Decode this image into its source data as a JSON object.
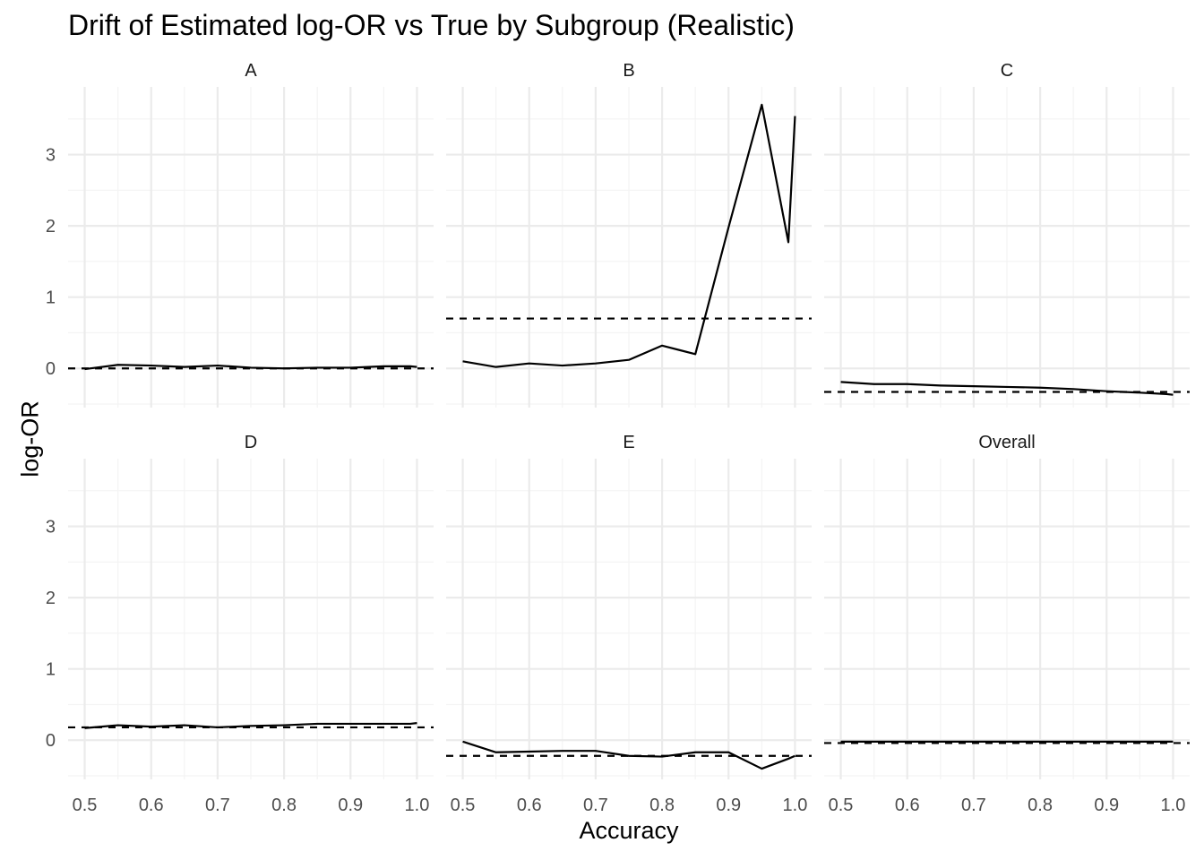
{
  "chart_data": {
    "type": "line",
    "title": "Drift of Estimated log-OR vs True by Subgroup (Realistic)",
    "xlabel": "Accuracy",
    "ylabel": "log-OR",
    "xlim": [
      0.475,
      1.025
    ],
    "ylim": [
      -0.55,
      3.95
    ],
    "x_ticks": [
      0.5,
      0.6,
      0.7,
      0.8,
      0.9,
      1.0
    ],
    "x_tick_labels": [
      "0.5",
      "0.6",
      "0.7",
      "0.8",
      "0.9",
      "1.0"
    ],
    "y_ticks": [
      0,
      1,
      2,
      3
    ],
    "y_tick_labels": [
      "0",
      "1",
      "2",
      "3"
    ],
    "grid": true,
    "facets": [
      {
        "label": "A",
        "estimated": {
          "x": [
            0.5,
            0.55,
            0.6,
            0.65,
            0.7,
            0.75,
            0.8,
            0.85,
            0.9,
            0.95,
            0.99,
            1.0
          ],
          "y": [
            -0.01,
            0.05,
            0.04,
            0.02,
            0.04,
            0.01,
            0.0,
            0.01,
            0.01,
            0.03,
            0.03,
            0.02
          ]
        },
        "true_value": 0.0
      },
      {
        "label": "B",
        "estimated": {
          "x": [
            0.5,
            0.55,
            0.6,
            0.65,
            0.7,
            0.75,
            0.8,
            0.85,
            0.9,
            0.95,
            0.99,
            1.0
          ],
          "y": [
            0.1,
            0.02,
            0.07,
            0.04,
            0.07,
            0.12,
            0.32,
            0.2,
            1.98,
            3.7,
            1.77,
            3.54
          ]
        },
        "true_value": 0.7
      },
      {
        "label": "C",
        "estimated": {
          "x": [
            0.5,
            0.55,
            0.6,
            0.65,
            0.7,
            0.75,
            0.8,
            0.85,
            0.9,
            0.95,
            0.99,
            1.0
          ],
          "y": [
            -0.19,
            -0.22,
            -0.22,
            -0.24,
            -0.25,
            -0.26,
            -0.27,
            -0.29,
            -0.32,
            -0.34,
            -0.36,
            -0.37
          ]
        },
        "true_value": -0.33
      },
      {
        "label": "D",
        "estimated": {
          "x": [
            0.5,
            0.55,
            0.6,
            0.65,
            0.7,
            0.75,
            0.8,
            0.85,
            0.9,
            0.95,
            0.99,
            1.0
          ],
          "y": [
            0.17,
            0.21,
            0.19,
            0.21,
            0.18,
            0.2,
            0.21,
            0.23,
            0.23,
            0.23,
            0.23,
            0.24
          ]
        },
        "true_value": 0.18
      },
      {
        "label": "E",
        "estimated": {
          "x": [
            0.5,
            0.55,
            0.6,
            0.65,
            0.7,
            0.75,
            0.8,
            0.85,
            0.9,
            0.95,
            0.99,
            1.0
          ],
          "y": [
            -0.02,
            -0.17,
            -0.16,
            -0.15,
            -0.15,
            -0.22,
            -0.23,
            -0.17,
            -0.17,
            -0.4,
            -0.26,
            -0.22
          ]
        },
        "true_value": -0.22
      },
      {
        "label": "Overall",
        "estimated": {
          "x": [
            0.5,
            0.55,
            0.6,
            0.65,
            0.7,
            0.75,
            0.8,
            0.85,
            0.9,
            0.95,
            0.99,
            1.0
          ],
          "y": [
            -0.02,
            -0.02,
            -0.02,
            -0.02,
            -0.02,
            -0.02,
            -0.02,
            -0.02,
            -0.02,
            -0.02,
            -0.02,
            -0.02
          ]
        },
        "true_value": -0.04
      }
    ],
    "colors": {
      "line": "#000000",
      "grid_major": "#ebebeb",
      "grid_minor": "#f4f4f4",
      "tick_text": "#4d4d4d",
      "strip_text": "#1a1a1a"
    }
  }
}
